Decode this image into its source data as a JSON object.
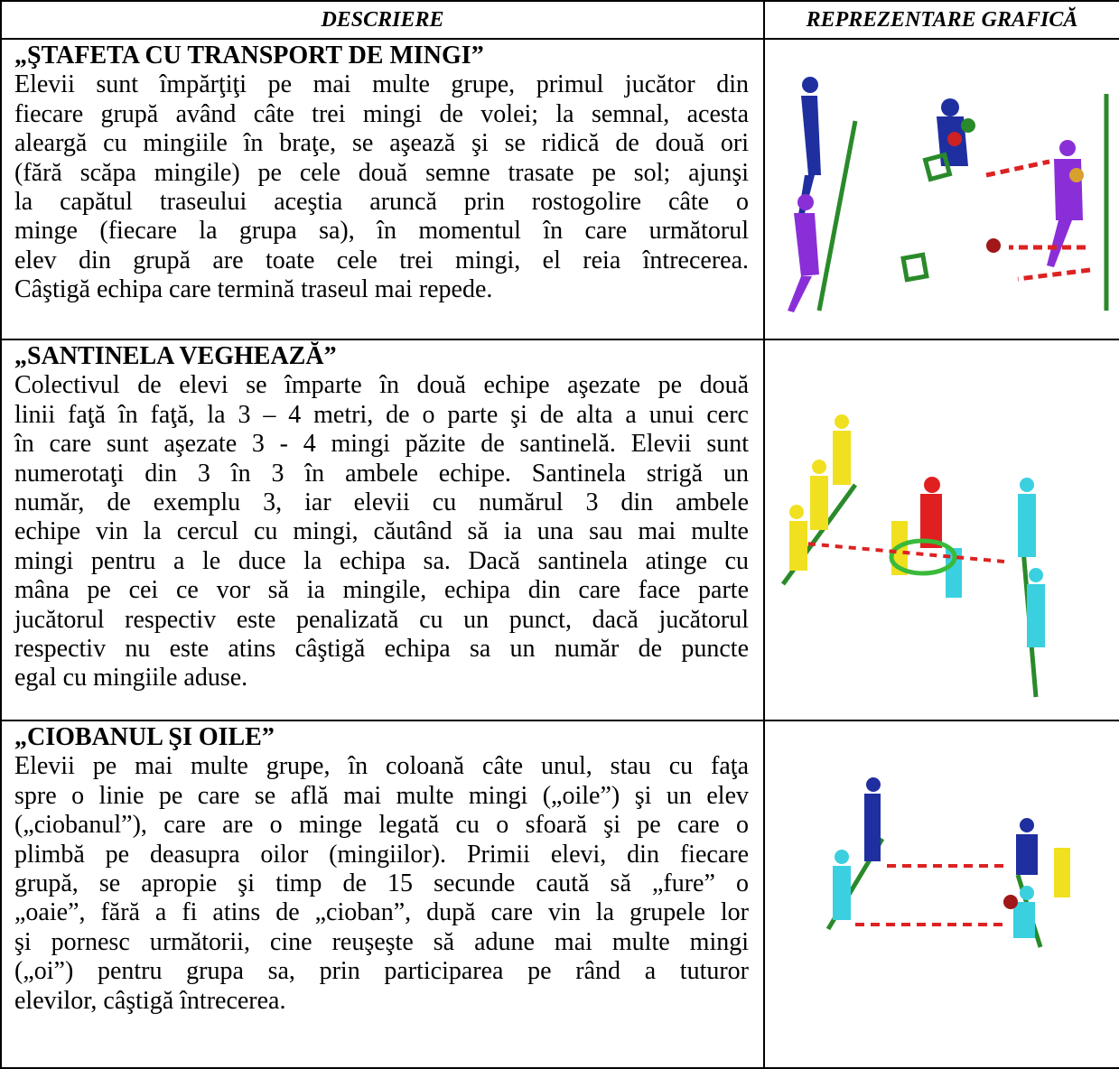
{
  "table": {
    "header": [
      "DESCRIERE",
      "REPREZENTARE GRAFICĂ"
    ],
    "rows": [
      {
        "title": "„ŞTAFETA CU TRANSPORT DE MINGI”",
        "lines": [
          "Elevii sunt împărţiţi pe mai multe grupe, primul jucător din",
          "fiecare grupă având câte trei mingi de volei; la semnal, acesta",
          "aleargă cu mingiile în braţe, se aşează şi se ridică de două ori",
          "(fără scăpa mingile) pe cele două semne trasate pe sol; ajunşi",
          "la capătul traseului aceştia aruncă prin rostogolire câte o",
          "minge (fiecare la grupa sa), în momentul în care următorul",
          "elev din grupă are toate cele trei mingi, el reia întrecerea.",
          "Câştigă echipa care termină traseul mai repede."
        ]
      },
      {
        "title": "„SANTINELA VEGHEAZĂ”",
        "lines": [
          "Colectivul de elevi se împarte în două echipe aşezate pe două",
          "linii faţă în faţă, la 3 – 4 metri, de o parte şi de alta a unui cerc",
          "în care sunt aşezate 3 - 4 mingi păzite de santinelă. Elevii sunt",
          "numerotaţi din 3 în 3 în ambele echipe. Santinela strigă un",
          "număr, de exemplu 3, iar elevii cu numărul 3 din ambele",
          "echipe vin la cercul cu mingi, căutând să ia una sau mai multe",
          "mingi pentru a le duce la echipa sa. Dacă santinela atinge cu",
          "mâna pe cei ce vor să ia mingile, echipa din care face parte",
          "jucătorul respectiv este penalizată cu un punct, dacă jucătorul",
          "respectiv nu este atins câştigă echipa sa un număr de puncte",
          "egal cu mingiile aduse."
        ]
      },
      {
        "title": "„CIOBANUL ŞI OILE”",
        "lines": [
          "Elevii pe mai multe grupe, în coloană câte unul, stau cu faţa",
          "spre o linie pe care se află mai multe mingi („oile”) şi un elev",
          "(„ciobanul”), care are o minge legată cu o sfoară şi pe care o",
          "plimbă pe deasupra oilor (mingiilor). Primii elevi, din fiecare",
          "grupă, se apropie şi timp de 15 secunde caută să „fure” o",
          "„oaie”, fără a fi atins de „cioban”, după care vin la grupele lor",
          "şi pornesc următorii, cine reuşeşte să adune mai multe mingi",
          "(„oi”) pentru grupa sa, prin participarea pe rând a tuturor",
          "elevilor, câştigă întrecerea."
        ]
      }
    ]
  }
}
